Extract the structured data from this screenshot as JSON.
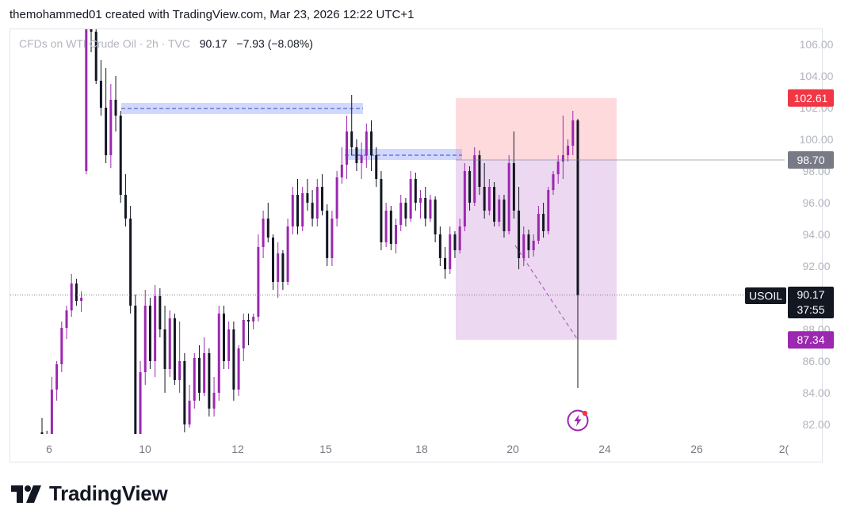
{
  "header": {
    "title": "themohammed01 created with TradingView.com, Mar 23, 2026 12:22 UTC+1"
  },
  "symbol": {
    "name": "CFDs on WTI Crude Oil · 2h · TVC",
    "last": "90.17",
    "change": "−7.93 (−8.08%)"
  },
  "footer": {
    "brand": "TradingView"
  },
  "colors": {
    "up": "#9c27b0",
    "down": "#131722",
    "zone": "#8c9eff",
    "stop": "#ffcdd2",
    "target": "#e1bee7",
    "label_red": "#f23645",
    "label_gray": "#787b86",
    "label_purple": "#9c27b0"
  },
  "icons": [
    "lightning-alert-icon",
    "tradingview-logo-icon"
  ],
  "chart_data": {
    "type": "candlestick",
    "ylim": [
      81,
      107
    ],
    "yticks": [
      "106.00",
      "104.00",
      "102.00",
      "100.00",
      "98.00",
      "96.00",
      "94.00",
      "92.00",
      "88.00",
      "86.00",
      "84.00",
      "82.00"
    ],
    "xticks": [
      "6",
      "10",
      "12",
      "15",
      "18",
      "20",
      "24",
      "26",
      "2("
    ],
    "price_labels": [
      {
        "name": "stop-loss-label",
        "text": "102.61",
        "value": 102.61,
        "color": "#f23645"
      },
      {
        "name": "entry-label",
        "text": "98.70",
        "value": 98.7,
        "color": "#787b86"
      },
      {
        "name": "take-profit-label",
        "text": "87.34",
        "value": 87.34,
        "color": "#9c27b0"
      }
    ],
    "last_price": {
      "symbol": "USOIL",
      "price": "90.17",
      "countdown": "37:55",
      "value": 90.17
    },
    "supply_zones": [
      {
        "top": 102.3,
        "bottom": 101.6,
        "mid": 101.95
      },
      {
        "top": 99.4,
        "bottom": 98.7,
        "mid": 99.0
      }
    ],
    "short_position": {
      "entry": 98.7,
      "stop": 102.61,
      "target": 87.34
    },
    "projection": {
      "from": 93.3,
      "to": 87.34
    },
    "ohlc": [
      [
        81.5,
        82.4,
        81.0,
        81.2
      ],
      [
        81.2,
        81.6,
        80.0,
        80.6
      ],
      [
        80.6,
        85.0,
        80.3,
        84.2
      ],
      [
        84.2,
        86.0,
        83.5,
        85.8
      ],
      [
        85.8,
        88.5,
        85.3,
        88.1
      ],
      [
        88.1,
        89.5,
        87.4,
        89.2
      ],
      [
        89.2,
        91.5,
        88.8,
        90.9
      ],
      [
        90.9,
        91.2,
        89.5,
        89.8
      ],
      [
        89.8,
        90.4,
        89.1,
        90.0
      ],
      [
        98.0,
        108.0,
        97.8,
        107.0
      ],
      [
        107.0,
        108.5,
        105.5,
        106.8
      ],
      [
        106.8,
        107.5,
        103.5,
        103.7
      ],
      [
        103.7,
        105.0,
        101.5,
        102.0
      ],
      [
        102.0,
        104.5,
        98.5,
        99.0
      ],
      [
        99.0,
        103.5,
        98.2,
        102.5
      ],
      [
        102.5,
        104.0,
        100.5,
        101.5
      ],
      [
        101.5,
        101.8,
        96.0,
        96.5
      ],
      [
        96.5,
        97.8,
        94.5,
        95.0
      ],
      [
        95.0,
        95.8,
        89.0,
        89.5
      ],
      [
        89.5,
        90.2,
        80.0,
        81.0
      ],
      [
        81.0,
        86.0,
        80.5,
        85.3
      ],
      [
        85.3,
        90.5,
        84.5,
        89.5
      ],
      [
        89.5,
        90.0,
        85.5,
        86.0
      ],
      [
        86.0,
        90.8,
        85.0,
        90.1
      ],
      [
        90.1,
        90.6,
        87.5,
        88.0
      ],
      [
        88.0,
        89.5,
        84.0,
        85.5
      ],
      [
        85.5,
        89.2,
        85.0,
        88.7
      ],
      [
        88.7,
        89.0,
        84.5,
        84.8
      ],
      [
        84.8,
        88.5,
        84.0,
        86.0
      ],
      [
        86.0,
        86.5,
        81.5,
        82.0
      ],
      [
        82.0,
        84.5,
        81.8,
        83.5
      ],
      [
        83.5,
        86.5,
        83.0,
        86.2
      ],
      [
        86.2,
        87.0,
        83.5,
        84.0
      ],
      [
        84.0,
        87.5,
        83.8,
        86.5
      ],
      [
        86.5,
        86.8,
        82.5,
        83.0
      ],
      [
        83.0,
        85.0,
        82.5,
        84.0
      ],
      [
        84.0,
        89.5,
        83.5,
        89.0
      ],
      [
        89.0,
        89.5,
        85.5,
        86.0
      ],
      [
        86.0,
        88.5,
        85.5,
        88.0
      ],
      [
        88.0,
        88.5,
        83.5,
        84.2
      ],
      [
        84.2,
        87.0,
        83.8,
        86.8
      ],
      [
        86.8,
        89.0,
        86.0,
        88.6
      ],
      [
        88.6,
        89.0,
        87.0,
        88.5
      ],
      [
        88.5,
        89.0,
        88.0,
        88.8
      ],
      [
        88.8,
        94.0,
        88.5,
        93.2
      ],
      [
        93.2,
        95.5,
        92.5,
        95.0
      ],
      [
        95.0,
        96.0,
        93.5,
        93.8
      ],
      [
        93.8,
        94.0,
        90.5,
        91.0
      ],
      [
        91.0,
        93.5,
        90.0,
        92.8
      ],
      [
        92.8,
        93.0,
        90.5,
        91.0
      ],
      [
        91.0,
        95.0,
        90.8,
        94.5
      ],
      [
        94.5,
        97.0,
        94.0,
        96.5
      ],
      [
        96.5,
        97.5,
        94.0,
        94.5
      ],
      [
        94.5,
        97.0,
        94.2,
        96.6
      ],
      [
        96.6,
        97.5,
        95.5,
        96.0
      ],
      [
        96.0,
        96.8,
        94.5,
        95.0
      ],
      [
        95.0,
        97.5,
        94.5,
        97.0
      ],
      [
        97.0,
        97.8,
        95.2,
        95.5
      ],
      [
        95.5,
        95.9,
        92.0,
        92.5
      ],
      [
        92.5,
        95.5,
        92.0,
        95.0
      ],
      [
        95.0,
        98.0,
        94.5,
        97.6
      ],
      [
        97.6,
        99.5,
        97.2,
        98.4
      ],
      [
        98.4,
        101.5,
        97.5,
        100.5
      ],
      [
        100.5,
        102.8,
        99.0,
        99.5
      ],
      [
        99.5,
        100.0,
        98.0,
        98.5
      ],
      [
        98.5,
        99.8,
        97.5,
        99.0
      ],
      [
        99.0,
        101.0,
        98.2,
        100.5
      ],
      [
        100.5,
        101.2,
        98.0,
        99.0
      ],
      [
        99.0,
        99.5,
        97.0,
        97.5
      ],
      [
        97.5,
        98.0,
        93.0,
        93.5
      ],
      [
        93.5,
        96.0,
        93.2,
        95.5
      ],
      [
        95.5,
        95.8,
        93.0,
        93.4
      ],
      [
        93.4,
        95.0,
        92.8,
        94.6
      ],
      [
        94.6,
        96.5,
        94.2,
        96.0
      ],
      [
        96.0,
        96.3,
        94.5,
        95.0
      ],
      [
        95.0,
        98.0,
        94.8,
        97.5
      ],
      [
        97.5,
        97.9,
        95.5,
        96.0
      ],
      [
        96.0,
        96.8,
        95.0,
        96.3
      ],
      [
        96.3,
        97.0,
        94.5,
        95.0
      ],
      [
        95.0,
        96.5,
        94.8,
        96.2
      ],
      [
        96.2,
        96.4,
        93.5,
        94.0
      ],
      [
        94.0,
        94.5,
        92.0,
        92.5
      ],
      [
        92.5,
        93.2,
        91.2,
        91.8
      ],
      [
        91.8,
        94.5,
        91.5,
        94.0
      ],
      [
        94.0,
        94.2,
        92.5,
        93.0
      ],
      [
        93.0,
        95.0,
        92.8,
        94.5
      ],
      [
        94.5,
        98.5,
        94.2,
        98.0
      ],
      [
        98.0,
        98.3,
        95.5,
        96.0
      ],
      [
        96.0,
        99.5,
        95.8,
        99.0
      ],
      [
        99.0,
        99.3,
        96.5,
        97.0
      ],
      [
        97.0,
        98.5,
        95.0,
        95.5
      ],
      [
        95.5,
        97.5,
        95.2,
        97.0
      ],
      [
        97.0,
        97.3,
        94.5,
        94.8
      ],
      [
        94.8,
        96.5,
        94.5,
        96.2
      ],
      [
        96.2,
        96.5,
        93.8,
        94.2
      ],
      [
        94.2,
        99.0,
        94.0,
        98.5
      ],
      [
        98.5,
        100.5,
        95.0,
        95.5
      ],
      [
        95.5,
        97.0,
        91.8,
        92.5
      ],
      [
        92.5,
        94.5,
        92.0,
        94.0
      ],
      [
        94.0,
        94.3,
        92.5,
        93.0
      ],
      [
        93.0,
        94.0,
        92.6,
        93.6
      ],
      [
        93.6,
        95.8,
        93.4,
        95.3
      ],
      [
        95.3,
        96.0,
        93.8,
        94.2
      ],
      [
        94.2,
        97.0,
        94.0,
        96.8
      ],
      [
        96.8,
        98.0,
        96.5,
        97.8
      ],
      [
        97.8,
        99.0,
        97.2,
        98.6
      ],
      [
        98.6,
        101.5,
        97.5,
        99.0
      ],
      [
        99.0,
        100.0,
        98.6,
        99.6
      ],
      [
        99.6,
        101.8,
        99.0,
        101.2
      ],
      [
        101.2,
        101.3,
        84.3,
        90.17
      ]
    ]
  }
}
